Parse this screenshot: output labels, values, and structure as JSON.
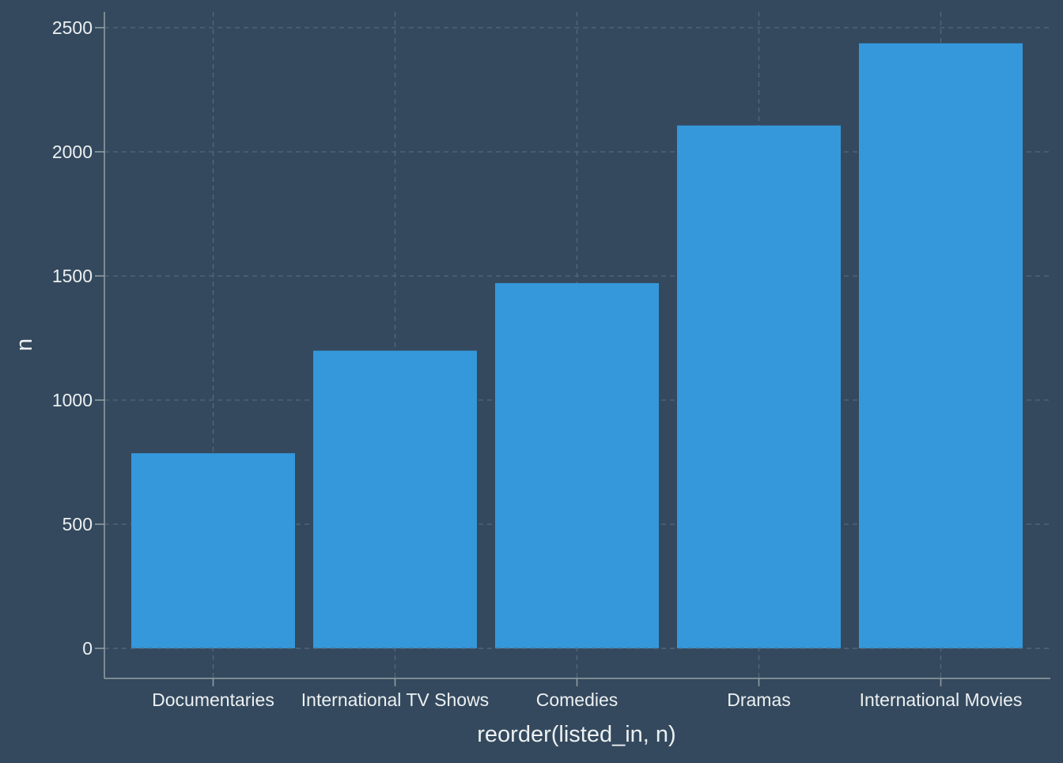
{
  "colors": {
    "background": "#34495e",
    "bar": "#3498db",
    "grid": "#55677b",
    "axis": "#94a1a3",
    "text": "#ecf0f1"
  },
  "chart_data": {
    "type": "bar",
    "categories": [
      "Documentaries",
      "International TV Shows",
      "Comedies",
      "Dramas",
      "International Movies"
    ],
    "values": [
      786,
      1199,
      1471,
      2106,
      2437
    ],
    "xlabel": "reorder(listed_in, n)",
    "ylabel": "n",
    "ylim": [
      0,
      2560
    ],
    "yticks": [
      0,
      500,
      1000,
      1500,
      2000,
      2500
    ],
    "grid": true,
    "grid_style": "dashed"
  }
}
